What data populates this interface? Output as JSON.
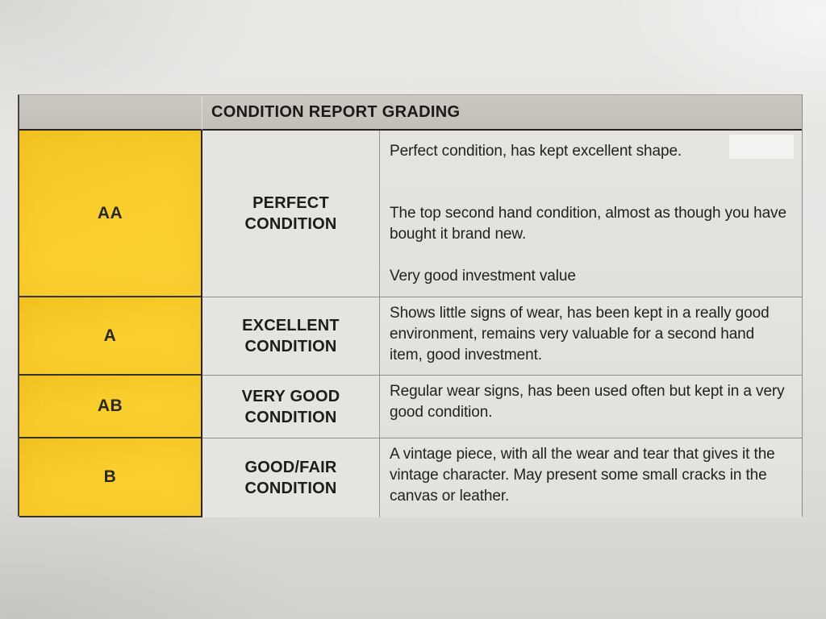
{
  "document": {
    "title": "CONDITION REPORT GRADING",
    "rows": [
      {
        "grade": "AA",
        "condition_line1": "PERFECT",
        "condition_line2": "CONDITION",
        "paragraphs": [
          "Perfect condition, has kept excellent shape.",
          "The top second hand condition, almost as though you have bought it brand new.",
          "Very good investment value"
        ]
      },
      {
        "grade": "A",
        "condition_line1": "EXCELLENT",
        "condition_line2": "CONDITION",
        "paragraphs": [
          "Shows little signs of wear, has been kept in a really good environment, remains very valuable for a second hand item, good investment."
        ]
      },
      {
        "grade": "AB",
        "condition_line1": "VERY GOOD",
        "condition_line2": "CONDITION",
        "paragraphs": [
          "Regular wear signs, has been used often but kept in a very good condition."
        ]
      },
      {
        "grade": "B",
        "condition_line1": "GOOD/FAIR",
        "condition_line2": "CONDITION",
        "paragraphs": [
          "A vintage piece, with all the wear and tear that gives it the vintage character. May present some small cracks in the canvas or leather."
        ]
      }
    ],
    "colors": {
      "grade_cell_yellow": "#f8cc2b",
      "header_gray": "#c6c2bb",
      "cell_gray": "#e5e3df",
      "text_black": "#1e1d1b"
    }
  }
}
